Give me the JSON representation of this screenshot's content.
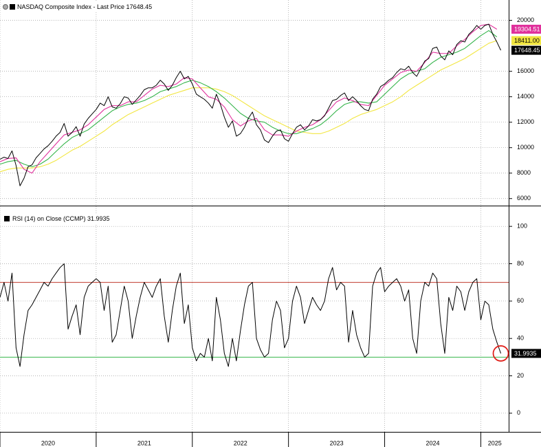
{
  "chart_data": [
    {
      "type": "line",
      "title": "NASDAQ Composite Index - Last Price 17648.45",
      "ylim": [
        5500,
        21600
      ],
      "yticks": [
        6000,
        8000,
        10000,
        12000,
        14000,
        16000,
        20000
      ],
      "grid": true,
      "series": [
        {
          "color": "#000000",
          "tag_label": "17648.45",
          "x": [
            2020,
            2020.042,
            2020.083,
            2020.125,
            2020.167,
            2020.208,
            2020.25,
            2020.292,
            2020.333,
            2020.375,
            2020.417,
            2020.458,
            2020.5,
            2020.542,
            2020.583,
            2020.625,
            2020.667,
            2020.708,
            2020.75,
            2020.792,
            2020.833,
            2020.875,
            2020.917,
            2020.958,
            2021,
            2021.042,
            2021.083,
            2021.125,
            2021.167,
            2021.208,
            2021.25,
            2021.292,
            2021.333,
            2021.375,
            2021.417,
            2021.458,
            2021.5,
            2021.542,
            2021.583,
            2021.625,
            2021.667,
            2021.708,
            2021.75,
            2021.792,
            2021.833,
            2021.875,
            2021.917,
            2021.958,
            2022,
            2022.042,
            2022.083,
            2022.125,
            2022.167,
            2022.208,
            2022.25,
            2022.292,
            2022.333,
            2022.375,
            2022.417,
            2022.458,
            2022.5,
            2022.542,
            2022.583,
            2022.625,
            2022.667,
            2022.708,
            2022.75,
            2022.792,
            2022.833,
            2022.875,
            2022.917,
            2022.958,
            2023,
            2023.042,
            2023.083,
            2023.125,
            2023.167,
            2023.208,
            2023.25,
            2023.292,
            2023.333,
            2023.375,
            2023.417,
            2023.458,
            2023.5,
            2023.542,
            2023.583,
            2023.625,
            2023.667,
            2023.708,
            2023.75,
            2023.792,
            2023.833,
            2023.875,
            2023.917,
            2023.958,
            2024,
            2024.042,
            2024.083,
            2024.125,
            2024.167,
            2024.208,
            2024.25,
            2024.292,
            2024.333,
            2024.375,
            2024.417,
            2024.458,
            2024.5,
            2024.542,
            2024.583,
            2024.625,
            2024.667,
            2024.708,
            2024.75,
            2024.792,
            2024.833,
            2024.875,
            2024.917,
            2024.958,
            2025,
            2025.042,
            2025.083,
            2025.125,
            2025.167,
            2025.208
          ],
          "values": [
            9090,
            9250,
            9150,
            9750,
            8600,
            7000,
            7600,
            8500,
            8650,
            9200,
            9550,
            9900,
            10150,
            10500,
            10900,
            11200,
            11900,
            10900,
            11200,
            11650,
            10900,
            11850,
            12300,
            12650,
            13000,
            13500,
            13300,
            14000,
            13200,
            13100,
            13450,
            14000,
            13900,
            13400,
            13750,
            14100,
            14550,
            14700,
            14700,
            14900,
            15300,
            15000,
            14500,
            14900,
            15500,
            16000,
            15400,
            15600,
            15000,
            14200,
            14000,
            13800,
            13500,
            13100,
            14200,
            13400,
            12400,
            11600,
            12100,
            10900,
            11100,
            11600,
            12300,
            12800,
            11800,
            11400,
            10600,
            10400,
            10900,
            11300,
            11400,
            10700,
            10500,
            11100,
            11600,
            11800,
            11400,
            11700,
            12200,
            12100,
            12200,
            12500,
            13100,
            13700,
            13800,
            14100,
            14300,
            13700,
            14000,
            13700,
            13300,
            13000,
            12900,
            13800,
            14200,
            14800,
            15000,
            15300,
            15500,
            15900,
            16200,
            16100,
            16400,
            15900,
            15600,
            16200,
            16800,
            17000,
            17800,
            17900,
            17200,
            16900,
            17600,
            17300,
            18100,
            18400,
            18300,
            18900,
            19200,
            19600,
            19300,
            19600,
            19700,
            18900,
            18300,
            17648.45
          ]
        },
        {
          "color": "#e0309c",
          "tag_label": "19304.51",
          "x": [
            2020,
            2020.083,
            2020.167,
            2020.25,
            2020.333,
            2020.417,
            2020.5,
            2020.583,
            2020.667,
            2020.75,
            2020.833,
            2020.917,
            2021,
            2021.083,
            2021.167,
            2021.25,
            2021.333,
            2021.417,
            2021.5,
            2021.583,
            2021.667,
            2021.75,
            2021.833,
            2021.917,
            2022,
            2022.083,
            2022.167,
            2022.25,
            2022.333,
            2022.417,
            2022.5,
            2022.583,
            2022.667,
            2022.75,
            2022.833,
            2022.917,
            2023,
            2023.083,
            2023.167,
            2023.25,
            2023.333,
            2023.417,
            2023.5,
            2023.583,
            2023.667,
            2023.75,
            2023.833,
            2023.917,
            2024,
            2024.083,
            2024.167,
            2024.25,
            2024.333,
            2024.417,
            2024.5,
            2024.583,
            2024.667,
            2024.75,
            2024.833,
            2024.917,
            2025,
            2025.083,
            2025.167
          ],
          "values": [
            8900,
            9150,
            9200,
            8300,
            8000,
            8900,
            9600,
            10300,
            11000,
            11200,
            11400,
            11800,
            12400,
            13000,
            13300,
            13300,
            13600,
            13600,
            14100,
            14600,
            14900,
            14800,
            15000,
            15500,
            15400,
            14700,
            14000,
            13800,
            13200,
            12200,
            11700,
            12100,
            12300,
            11400,
            11000,
            11000,
            10900,
            11300,
            11600,
            11800,
            12200,
            12900,
            13600,
            13900,
            13700,
            13400,
            13300,
            14100,
            14900,
            15400,
            15900,
            16100,
            16000,
            16700,
            17500,
            17400,
            17400,
            18000,
            18500,
            19100,
            19600,
            19700,
            19304.51
          ]
        },
        {
          "color": "#34b44a",
          "x": [
            2020,
            2020.083,
            2020.167,
            2020.25,
            2020.333,
            2020.417,
            2020.5,
            2020.583,
            2020.667,
            2020.75,
            2020.833,
            2020.917,
            2021,
            2021.083,
            2021.167,
            2021.25,
            2021.333,
            2021.417,
            2021.5,
            2021.583,
            2021.667,
            2021.75,
            2021.833,
            2021.917,
            2022,
            2022.083,
            2022.167,
            2022.25,
            2022.333,
            2022.417,
            2022.5,
            2022.583,
            2022.667,
            2022.75,
            2022.833,
            2022.917,
            2023,
            2023.083,
            2023.167,
            2023.25,
            2023.333,
            2023.417,
            2023.5,
            2023.583,
            2023.667,
            2023.75,
            2023.833,
            2023.917,
            2024,
            2024.083,
            2024.167,
            2024.25,
            2024.333,
            2024.417,
            2024.5,
            2024.583,
            2024.667,
            2024.75,
            2024.833,
            2024.917,
            2025,
            2025.083,
            2025.167
          ],
          "values": [
            8700,
            8900,
            9000,
            8700,
            8500,
            8700,
            9100,
            9700,
            10300,
            10800,
            11100,
            11400,
            11900,
            12400,
            12900,
            13200,
            13400,
            13500,
            13700,
            14000,
            14400,
            14600,
            14800,
            15100,
            15300,
            15100,
            14800,
            14400,
            13900,
            13300,
            12700,
            12300,
            12100,
            12000,
            11600,
            11300,
            11100,
            11100,
            11300,
            11500,
            11800,
            12300,
            12900,
            13400,
            13600,
            13600,
            13500,
            13600,
            14200,
            14800,
            15400,
            15800,
            16000,
            16200,
            16700,
            17100,
            17300,
            17500,
            17800,
            18300,
            18800,
            19200,
            18700
          ]
        },
        {
          "color": "#f2e640",
          "tag_label": "18411.00",
          "x": [
            2020,
            2020.083,
            2020.167,
            2020.25,
            2020.333,
            2020.417,
            2020.5,
            2020.583,
            2020.667,
            2020.75,
            2020.833,
            2020.917,
            2021,
            2021.083,
            2021.167,
            2021.25,
            2021.333,
            2021.417,
            2021.5,
            2021.583,
            2021.667,
            2021.75,
            2021.833,
            2021.917,
            2022,
            2022.083,
            2022.167,
            2022.25,
            2022.333,
            2022.417,
            2022.5,
            2022.583,
            2022.667,
            2022.75,
            2022.833,
            2022.917,
            2023,
            2023.083,
            2023.167,
            2023.25,
            2023.333,
            2023.417,
            2023.5,
            2023.583,
            2023.667,
            2023.75,
            2023.833,
            2023.917,
            2024,
            2024.083,
            2024.167,
            2024.25,
            2024.333,
            2024.417,
            2024.5,
            2024.583,
            2024.667,
            2024.75,
            2024.833,
            2024.917,
            2025,
            2025.083,
            2025.167
          ],
          "values": [
            8100,
            8300,
            8400,
            8400,
            8400,
            8500,
            8700,
            9000,
            9400,
            9800,
            10100,
            10500,
            10900,
            11300,
            11800,
            12200,
            12600,
            12900,
            13200,
            13500,
            13800,
            14100,
            14300,
            14500,
            14700,
            14700,
            14700,
            14600,
            14400,
            14100,
            13700,
            13300,
            12900,
            12500,
            12200,
            11900,
            11600,
            11300,
            11200,
            11100,
            11100,
            11300,
            11600,
            11900,
            12300,
            12600,
            12800,
            13000,
            13300,
            13600,
            14000,
            14500,
            14900,
            15300,
            15700,
            16100,
            16400,
            16700,
            17000,
            17400,
            17800,
            18200,
            18411
          ]
        }
      ]
    },
    {
      "type": "line",
      "title": "RSI (14)  on Close (CCMP) 31.9935",
      "xlim": [
        2020,
        2025.29
      ],
      "xticks": [
        2020,
        2021,
        2022,
        2023,
        2024,
        2025
      ],
      "ylim": [
        -10,
        110
      ],
      "yticks": [
        0,
        20,
        40,
        60,
        80,
        100
      ],
      "grid": true,
      "hlines": [
        {
          "value": 70,
          "color": "#c0392b"
        },
        {
          "value": 30,
          "color": "#34b44a"
        }
      ],
      "series": [
        {
          "color": "#000000",
          "tag_label": "31.9935",
          "x": [
            2020,
            2020.042,
            2020.083,
            2020.125,
            2020.167,
            2020.208,
            2020.25,
            2020.292,
            2020.333,
            2020.375,
            2020.417,
            2020.458,
            2020.5,
            2020.542,
            2020.583,
            2020.625,
            2020.667,
            2020.708,
            2020.75,
            2020.792,
            2020.833,
            2020.875,
            2020.917,
            2020.958,
            2021,
            2021.042,
            2021.083,
            2021.125,
            2021.167,
            2021.208,
            2021.25,
            2021.292,
            2021.333,
            2021.375,
            2021.417,
            2021.458,
            2021.5,
            2021.542,
            2021.583,
            2021.625,
            2021.667,
            2021.708,
            2021.75,
            2021.792,
            2021.833,
            2021.875,
            2021.917,
            2021.958,
            2022,
            2022.042,
            2022.083,
            2022.125,
            2022.167,
            2022.208,
            2022.25,
            2022.292,
            2022.333,
            2022.375,
            2022.417,
            2022.458,
            2022.5,
            2022.542,
            2022.583,
            2022.625,
            2022.667,
            2022.708,
            2022.75,
            2022.792,
            2022.833,
            2022.875,
            2022.917,
            2022.958,
            2023,
            2023.042,
            2023.083,
            2023.125,
            2023.167,
            2023.208,
            2023.25,
            2023.292,
            2023.333,
            2023.375,
            2023.417,
            2023.458,
            2023.5,
            2023.542,
            2023.583,
            2023.625,
            2023.667,
            2023.708,
            2023.75,
            2023.792,
            2023.833,
            2023.875,
            2023.917,
            2023.958,
            2024,
            2024.042,
            2024.083,
            2024.125,
            2024.167,
            2024.208,
            2024.25,
            2024.292,
            2024.333,
            2024.375,
            2024.417,
            2024.458,
            2024.5,
            2024.542,
            2024.583,
            2024.625,
            2024.667,
            2024.708,
            2024.75,
            2024.792,
            2024.833,
            2024.875,
            2024.917,
            2024.958,
            2025,
            2025.042,
            2025.083,
            2025.125,
            2025.167,
            2025.208
          ],
          "values": [
            62,
            70,
            60,
            75,
            35,
            25,
            42,
            55,
            58,
            62,
            66,
            70,
            68,
            72,
            75,
            78,
            80,
            45,
            52,
            58,
            42,
            62,
            68,
            70,
            72,
            70,
            55,
            68,
            38,
            42,
            55,
            68,
            60,
            40,
            52,
            62,
            70,
            66,
            62,
            68,
            72,
            52,
            38,
            55,
            68,
            75,
            48,
            58,
            35,
            28,
            32,
            30,
            40,
            28,
            62,
            50,
            32,
            25,
            40,
            28,
            44,
            58,
            68,
            70,
            40,
            34,
            30,
            32,
            50,
            60,
            55,
            35,
            40,
            60,
            68,
            62,
            48,
            55,
            62,
            58,
            55,
            60,
            72,
            78,
            66,
            70,
            68,
            38,
            55,
            42,
            35,
            30,
            32,
            68,
            75,
            78,
            65,
            68,
            70,
            72,
            68,
            60,
            66,
            40,
            32,
            60,
            70,
            68,
            75,
            72,
            48,
            32,
            62,
            55,
            68,
            65,
            55,
            65,
            70,
            72,
            50,
            60,
            58,
            45,
            38,
            31.9935
          ]
        }
      ]
    }
  ]
}
